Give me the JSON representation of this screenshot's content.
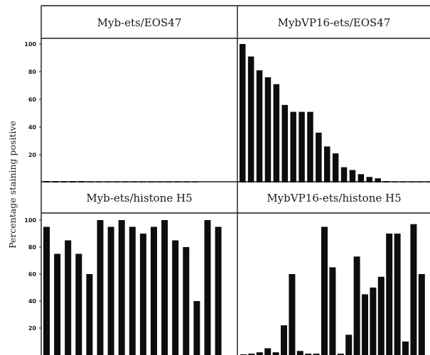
{
  "chart_data": [
    {
      "type": "bar",
      "title": "Myb-ets/EOS47",
      "ylabel": "Percentage staining positive",
      "ylim": [
        0,
        100
      ],
      "yticks": [
        20,
        40,
        60,
        80,
        100
      ],
      "values": [
        1,
        1,
        1,
        1,
        1,
        0.5,
        0.5,
        0.5,
        0.5,
        0.5,
        0.5,
        0.5,
        0.5,
        0.5,
        0.5,
        0.5,
        0.5,
        0.5
      ]
    },
    {
      "type": "bar",
      "title": "MybVP16-ets/EOS47",
      "ylim": [
        0,
        100
      ],
      "values": [
        100,
        91,
        81,
        76,
        71,
        56,
        51,
        51,
        51,
        36,
        26,
        21,
        11,
        9,
        6,
        4,
        3,
        1,
        0.5,
        0.5,
        0.5,
        0.5,
        0.5
      ]
    },
    {
      "type": "bar",
      "title": "Myb-ets/histone H5",
      "ylim": [
        0,
        100
      ],
      "yticks": [
        20,
        40,
        60,
        80,
        100
      ],
      "values": [
        95,
        75,
        85,
        75,
        60,
        100,
        95,
        100,
        95,
        90,
        95,
        100,
        85,
        80,
        40,
        100,
        95
      ]
    },
    {
      "type": "bar",
      "title": "MybVP16-ets/histone H5",
      "ylim": [
        0,
        100
      ],
      "values": [
        0.5,
        1,
        2,
        5,
        2,
        22,
        60,
        3,
        1,
        1,
        95,
        65,
        1,
        15,
        73,
        45,
        50,
        58,
        90,
        90,
        10,
        97,
        60
      ]
    }
  ]
}
